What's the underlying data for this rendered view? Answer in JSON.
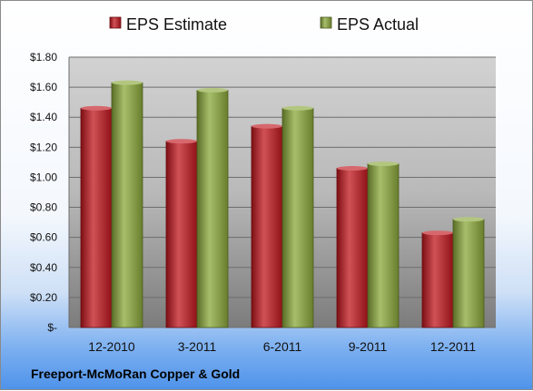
{
  "chart_data": {
    "type": "bar",
    "categories": [
      "12-2010",
      "3-2011",
      "6-2011",
      "9-2011",
      "12-2011"
    ],
    "series": [
      {
        "name": "EPS Estimate",
        "color": "#c0171e",
        "values": [
          1.46,
          1.24,
          1.34,
          1.06,
          0.63
        ]
      },
      {
        "name": "EPS Actual",
        "color": "#8aa83a",
        "values": [
          1.63,
          1.58,
          1.46,
          1.09,
          0.72
        ]
      }
    ],
    "ylim": [
      0,
      1.8
    ],
    "yticks": [
      0,
      0.2,
      0.4,
      0.6,
      0.8,
      1.0,
      1.2,
      1.4,
      1.6,
      1.8
    ],
    "ytick_labels": [
      "$-",
      "$0.20",
      "$0.40",
      "$0.60",
      "$0.80",
      "$1.00",
      "$1.20",
      "$1.40",
      "$1.60",
      "$1.80"
    ],
    "grid": true,
    "legend_position": "top",
    "footer": "Freeport-McMoRan Copper & Gold"
  }
}
